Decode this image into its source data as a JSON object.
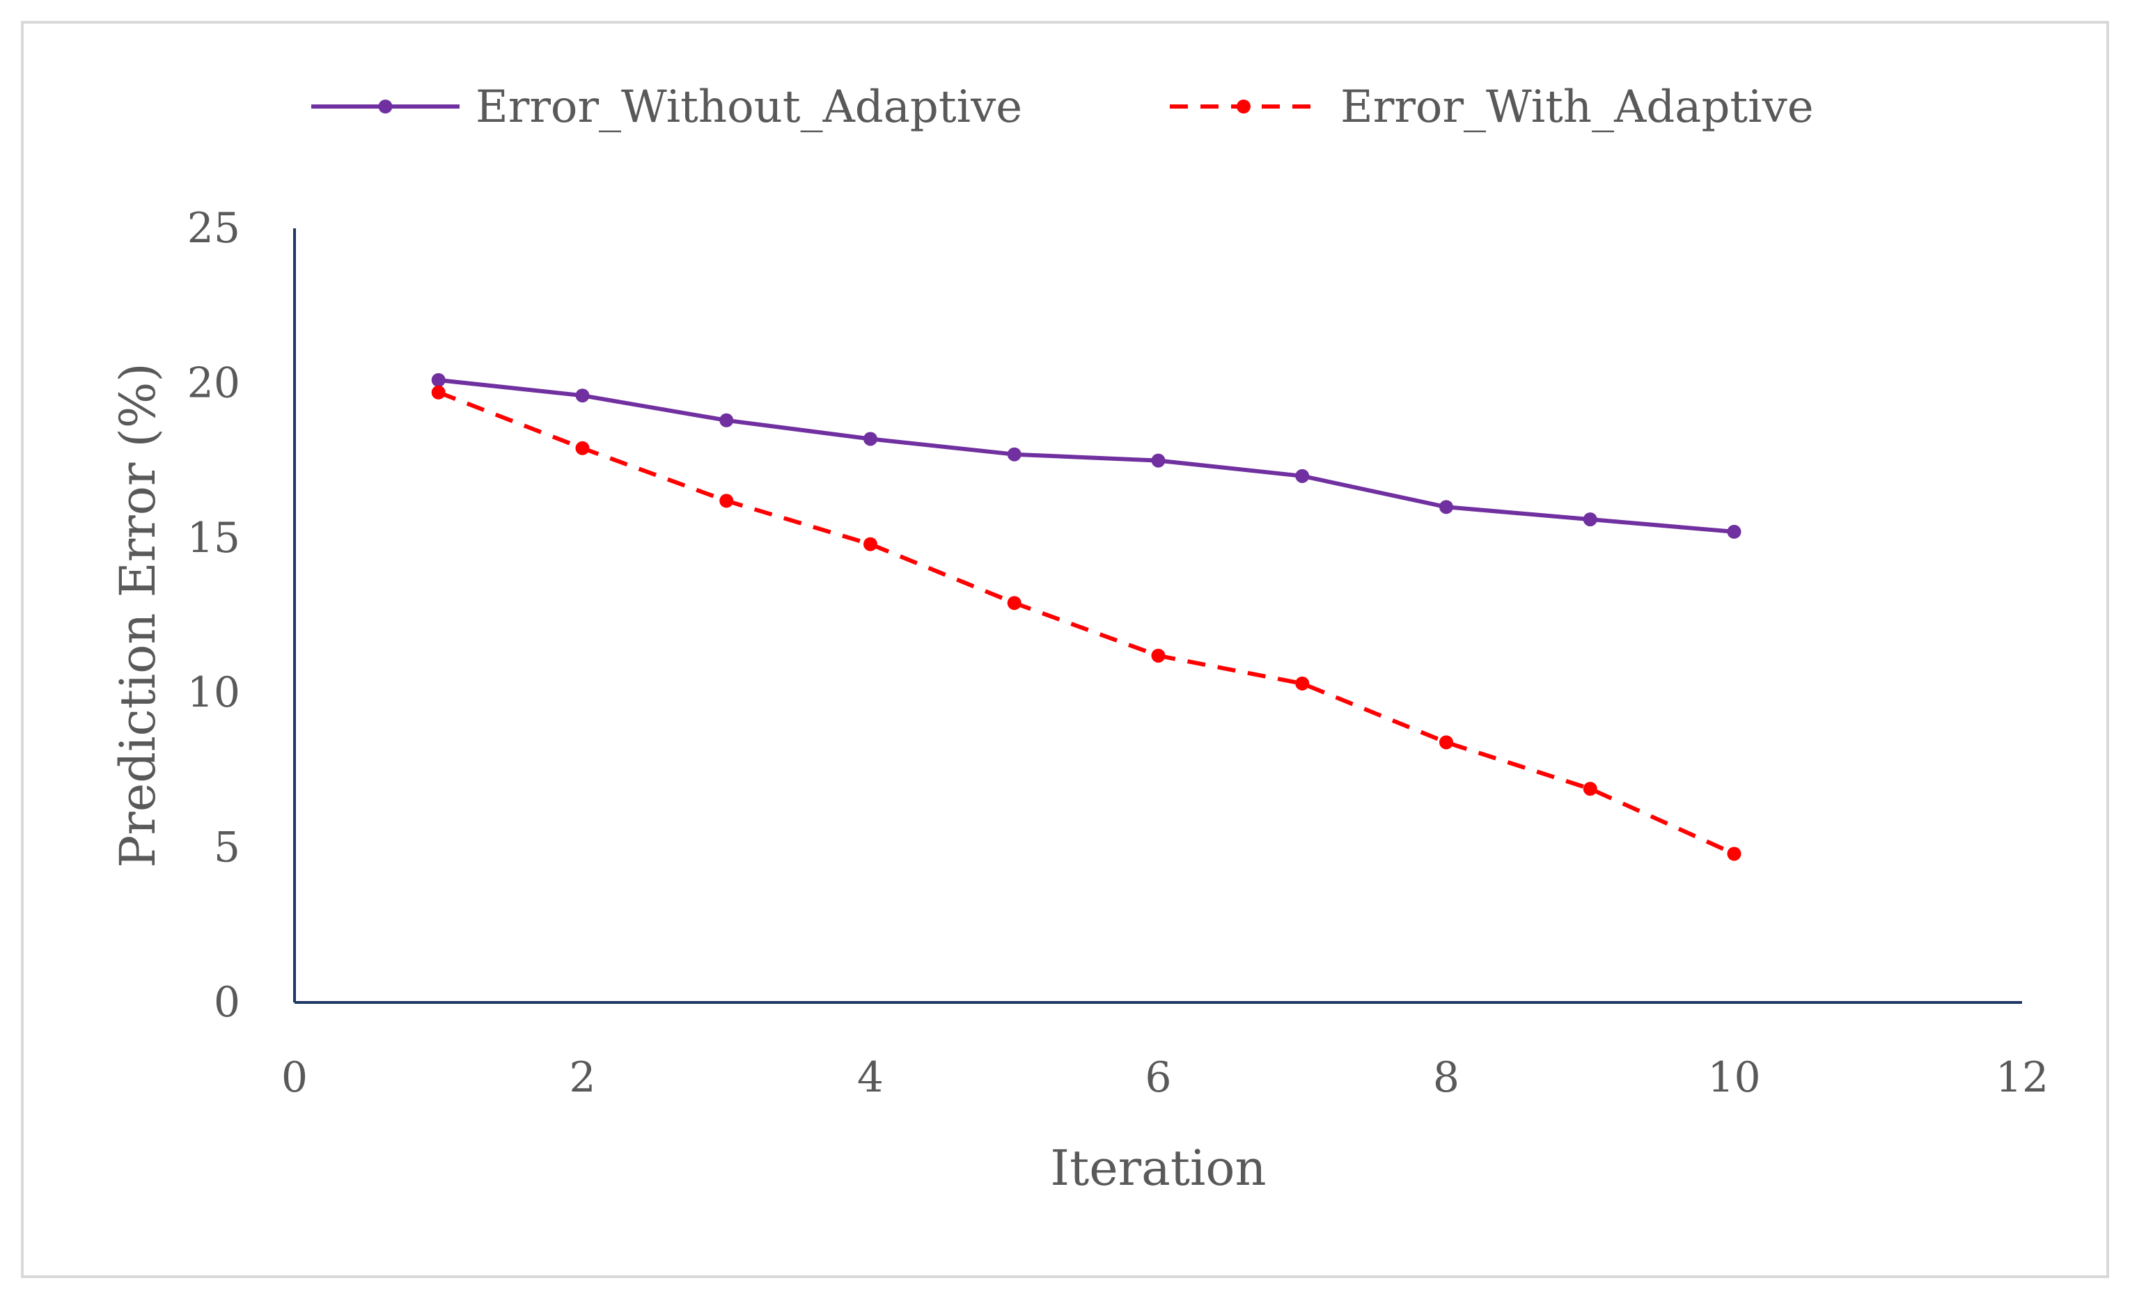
{
  "chart_data": {
    "type": "line",
    "title": "",
    "xlabel": "Iteration",
    "ylabel": "Prediction Error (%)",
    "xlim": [
      0,
      12
    ],
    "ylim": [
      0,
      25
    ],
    "xticks": [
      0,
      2,
      4,
      6,
      8,
      10,
      12
    ],
    "yticks": [
      0,
      5,
      10,
      15,
      20,
      25
    ],
    "grid": false,
    "legend_position": "top",
    "x": [
      1,
      2,
      3,
      4,
      5,
      6,
      7,
      8,
      9,
      10
    ],
    "series": [
      {
        "name": "Error_Without_Adaptive",
        "values": [
          20.1,
          19.6,
          18.8,
          18.2,
          17.7,
          17.5,
          17.0,
          16.0,
          15.6,
          15.2
        ],
        "color": "#7030a0",
        "style": "solid"
      },
      {
        "name": "Error_With_Adaptive",
        "values": [
          19.7,
          17.9,
          16.2,
          14.8,
          12.9,
          11.2,
          10.3,
          8.4,
          6.9,
          4.8
        ],
        "color": "#ff0000",
        "style": "dashed"
      }
    ],
    "axis_color": "#1f3864",
    "text_color": "#595959"
  }
}
